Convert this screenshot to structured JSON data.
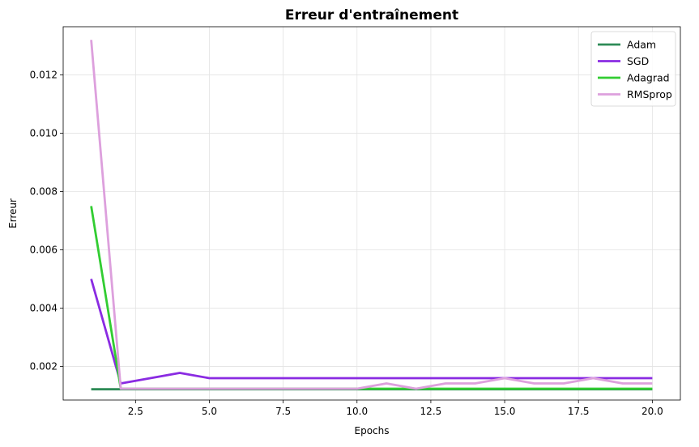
{
  "chart_data": {
    "type": "line",
    "title": "Erreur d'entraînement",
    "xlabel": "Epochs",
    "ylabel": "Erreur",
    "xlim": [
      0.05,
      20.95
    ],
    "ylim": [
      0.00085,
      0.01365
    ],
    "xticks": [
      2.5,
      5.0,
      7.5,
      10.0,
      12.5,
      15.0,
      17.5,
      20.0
    ],
    "xtick_labels": [
      "2.5",
      "5.0",
      "7.5",
      "10.0",
      "12.5",
      "15.0",
      "17.5",
      "20.0"
    ],
    "yticks": [
      0.002,
      0.004,
      0.006,
      0.008,
      0.01,
      0.012
    ],
    "ytick_labels": [
      "0.002",
      "0.004",
      "0.006",
      "0.008",
      "0.010",
      "0.012"
    ],
    "grid": true,
    "legend_position": "top-right",
    "x": [
      1,
      2,
      3,
      4,
      5,
      6,
      7,
      8,
      9,
      10,
      11,
      12,
      13,
      14,
      15,
      16,
      17,
      18,
      19,
      20
    ],
    "series": [
      {
        "name": "Adam",
        "color": "#2e8b57",
        "values": [
          0.00122,
          0.00122,
          0.00122,
          0.00122,
          0.00122,
          0.00122,
          0.00122,
          0.00122,
          0.00122,
          0.00122,
          0.00122,
          0.00122,
          0.00122,
          0.00122,
          0.00122,
          0.00122,
          0.00122,
          0.00122,
          0.00122,
          0.00122
        ]
      },
      {
        "name": "SGD",
        "color": "#8a2be2",
        "values": [
          0.005,
          0.00142,
          0.0016,
          0.00178,
          0.0016,
          0.0016,
          0.0016,
          0.0016,
          0.0016,
          0.0016,
          0.0016,
          0.0016,
          0.0016,
          0.0016,
          0.0016,
          0.0016,
          0.0016,
          0.0016,
          0.0016,
          0.0016
        ]
      },
      {
        "name": "Adagrad",
        "color": "#32cd32",
        "values": [
          0.0075,
          0.00124,
          0.00124,
          0.00124,
          0.00124,
          0.00124,
          0.00124,
          0.00124,
          0.00124,
          0.00124,
          0.00124,
          0.00124,
          0.00124,
          0.00124,
          0.00124,
          0.00124,
          0.00124,
          0.00124,
          0.00124,
          0.00124
        ]
      },
      {
        "name": "RMSprop",
        "color": "#dda0dd",
        "values": [
          0.0132,
          0.00124,
          0.00124,
          0.00124,
          0.00124,
          0.00124,
          0.00124,
          0.00124,
          0.00124,
          0.00124,
          0.00142,
          0.00124,
          0.00142,
          0.00142,
          0.0016,
          0.00142,
          0.00142,
          0.0016,
          0.00142,
          0.00142
        ]
      }
    ]
  }
}
